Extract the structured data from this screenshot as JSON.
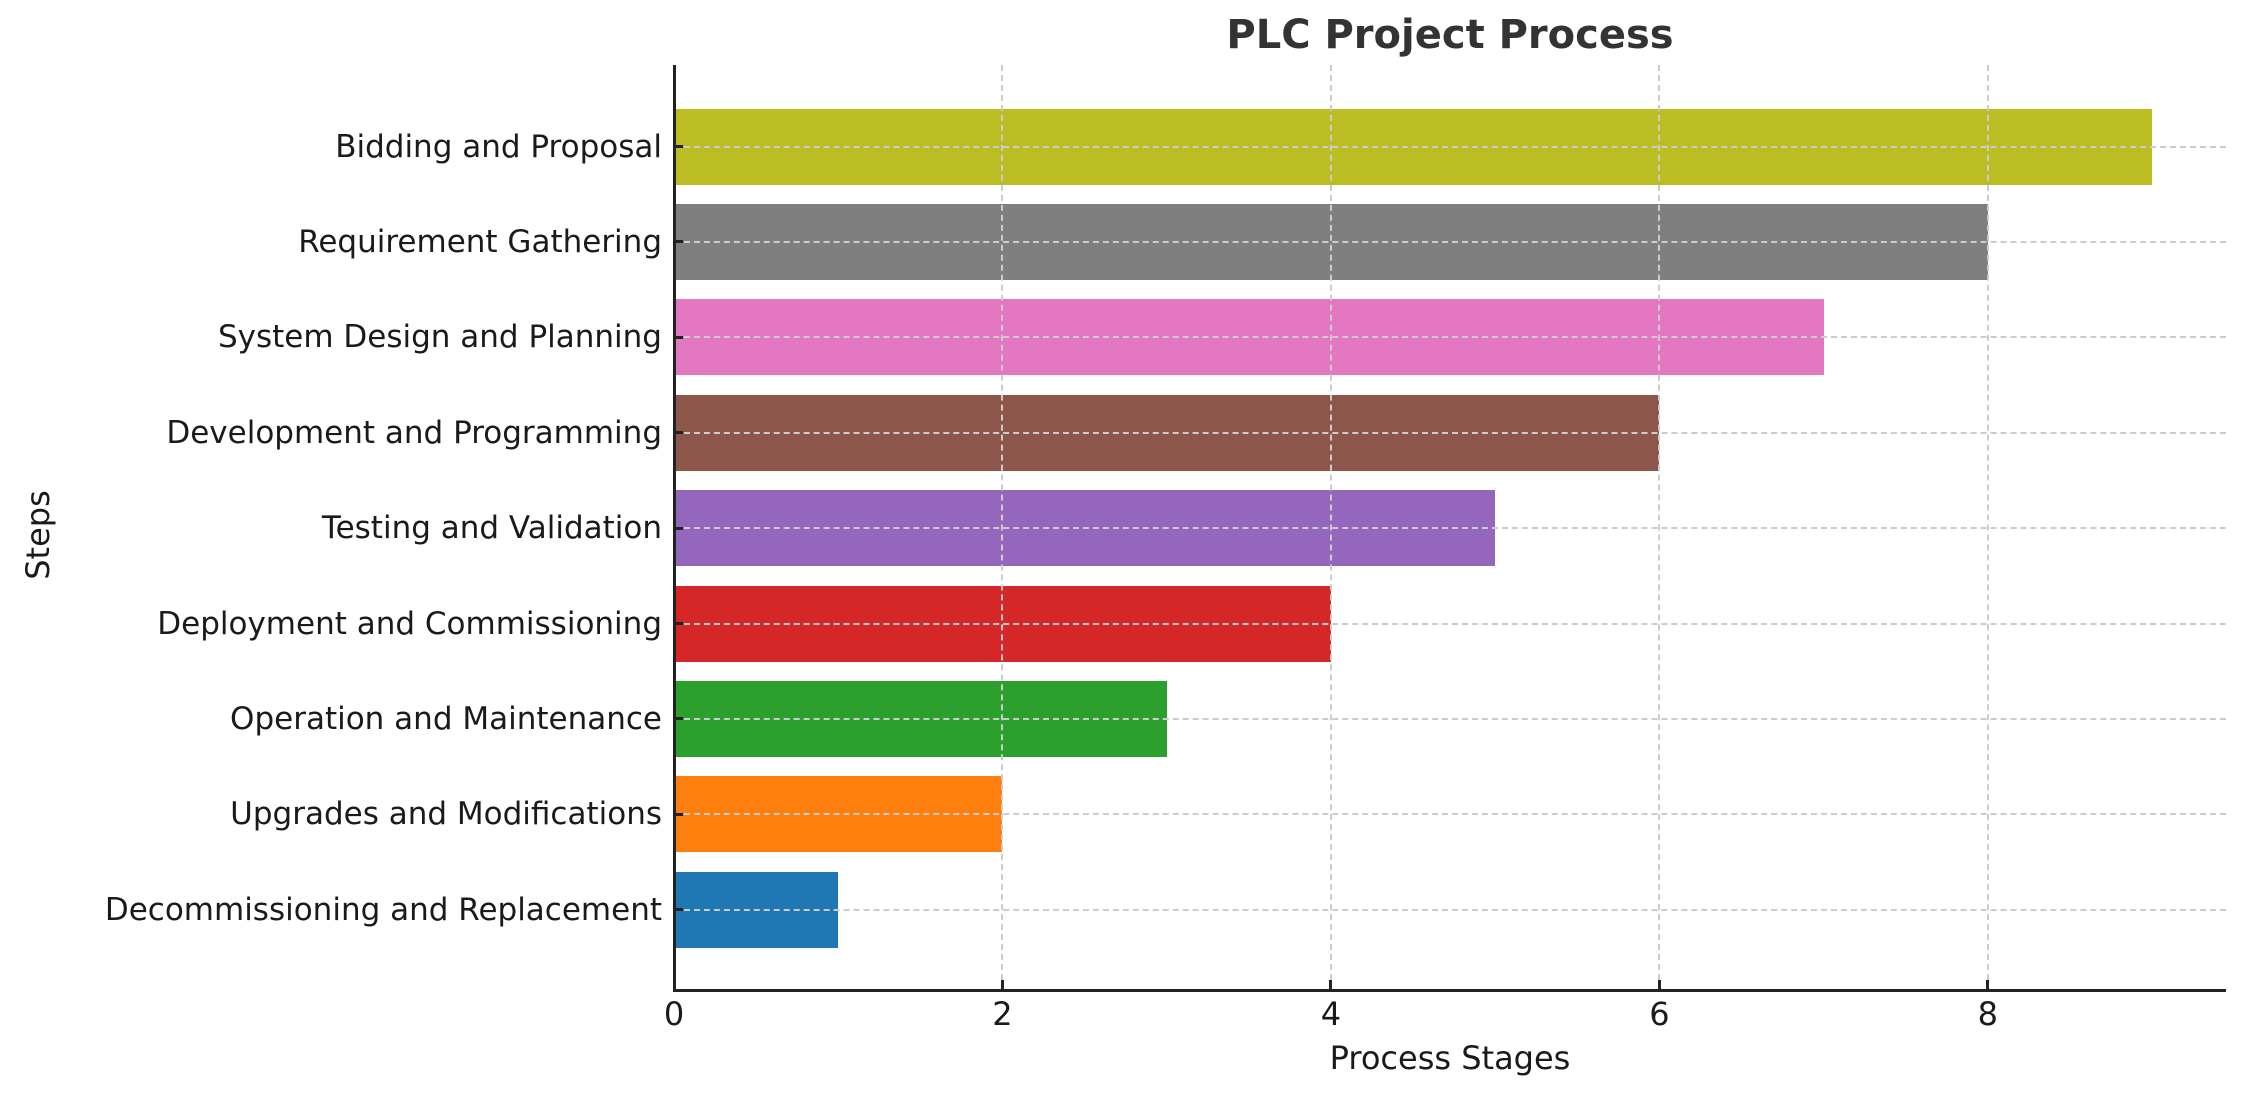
{
  "chart_data": {
    "type": "bar",
    "orientation": "horizontal",
    "title": "PLC Project Process",
    "xlabel": "Process Stages",
    "ylabel": "Steps",
    "categories": [
      "Bidding and Proposal",
      "Requirement Gathering",
      "System Design and Planning",
      "Development and Programming",
      "Testing and Validation",
      "Deployment and Commissioning",
      "Operation and Maintenance",
      "Upgrades and Modifications",
      "Decommissioning and Replacement"
    ],
    "values": [
      9,
      8,
      7,
      6,
      5,
      4,
      3,
      2,
      1
    ],
    "colors": [
      "#bcbd22",
      "#7f7f7f",
      "#e377c2",
      "#8c564b",
      "#9467bd",
      "#d62728",
      "#2ca02c",
      "#ff7f0e",
      "#1f77b4"
    ],
    "xlim": [
      0,
      9.45
    ],
    "xticks": [
      0,
      2,
      4,
      6,
      8
    ],
    "grid": true,
    "grid_style": "dashed",
    "legend": null
  }
}
